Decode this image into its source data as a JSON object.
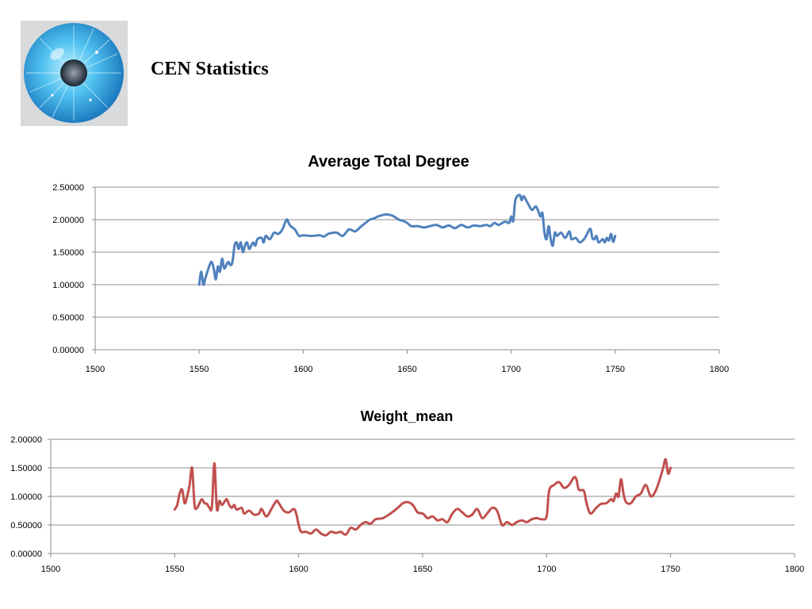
{
  "page": {
    "title": "CEN Statistics",
    "logo_icon": "eye-iris-icon"
  },
  "colors": {
    "series1": "#4f81bd",
    "series2": "#c0504d",
    "grid": "#8c8c8c"
  },
  "chart_data": [
    {
      "type": "line",
      "title": "Average Total Degree",
      "xlabel": "",
      "ylabel": "",
      "xlim": [
        1500,
        1800
      ],
      "ylim": [
        0,
        2.5
      ],
      "x_ticks": [
        1500,
        1550,
        1600,
        1650,
        1700,
        1750,
        1800
      ],
      "x_tick_labels": [
        "1500",
        "1550",
        "1600",
        "1650",
        "1700",
        "1750",
        "1800"
      ],
      "y_ticks": [
        0,
        0.5,
        1,
        1.5,
        2,
        2.5
      ],
      "y_tick_labels": [
        "0.00000",
        "0.50000",
        "1.00000",
        "1.50000",
        "2.00000",
        "2.50000"
      ],
      "grid": true,
      "legend": "none",
      "series": [
        {
          "color": "#4f81bd",
          "points": [
            [
              1550,
              1.0
            ],
            [
              1551,
              1.2
            ],
            [
              1552,
              1.0
            ],
            [
              1553,
              1.1
            ],
            [
              1555,
              1.3
            ],
            [
              1556,
              1.35
            ],
            [
              1557,
              1.25
            ],
            [
              1558,
              1.08
            ],
            [
              1559,
              1.28
            ],
            [
              1560,
              1.2
            ],
            [
              1561,
              1.4
            ],
            [
              1562,
              1.25
            ],
            [
              1563,
              1.3
            ],
            [
              1564,
              1.35
            ],
            [
              1565,
              1.3
            ],
            [
              1566,
              1.35
            ],
            [
              1567,
              1.6
            ],
            [
              1568,
              1.65
            ],
            [
              1569,
              1.55
            ],
            [
              1570,
              1.65
            ],
            [
              1571,
              1.5
            ],
            [
              1572,
              1.6
            ],
            [
              1573,
              1.65
            ],
            [
              1574,
              1.55
            ],
            [
              1575,
              1.6
            ],
            [
              1576,
              1.65
            ],
            [
              1577,
              1.6
            ],
            [
              1578,
              1.7
            ],
            [
              1580,
              1.72
            ],
            [
              1581,
              1.65
            ],
            [
              1582,
              1.75
            ],
            [
              1584,
              1.7
            ],
            [
              1586,
              1.8
            ],
            [
              1588,
              1.78
            ],
            [
              1590,
              1.85
            ],
            [
              1592,
              2.0
            ],
            [
              1593,
              1.95
            ],
            [
              1594,
              1.9
            ],
            [
              1596,
              1.85
            ],
            [
              1598,
              1.75
            ],
            [
              1600,
              1.76
            ],
            [
              1604,
              1.75
            ],
            [
              1608,
              1.76
            ],
            [
              1610,
              1.74
            ],
            [
              1612,
              1.78
            ],
            [
              1616,
              1.8
            ],
            [
              1619,
              1.75
            ],
            [
              1622,
              1.85
            ],
            [
              1625,
              1.82
            ],
            [
              1628,
              1.9
            ],
            [
              1630,
              1.95
            ],
            [
              1632,
              2.0
            ],
            [
              1634,
              2.02
            ],
            [
              1636,
              2.05
            ],
            [
              1638,
              2.07
            ],
            [
              1640,
              2.08
            ],
            [
              1643,
              2.06
            ],
            [
              1646,
              2.0
            ],
            [
              1648,
              1.98
            ],
            [
              1650,
              1.95
            ],
            [
              1652,
              1.9
            ],
            [
              1655,
              1.9
            ],
            [
              1658,
              1.88
            ],
            [
              1661,
              1.9
            ],
            [
              1664,
              1.92
            ],
            [
              1667,
              1.88
            ],
            [
              1670,
              1.91
            ],
            [
              1673,
              1.87
            ],
            [
              1676,
              1.92
            ],
            [
              1679,
              1.88
            ],
            [
              1682,
              1.91
            ],
            [
              1685,
              1.9
            ],
            [
              1688,
              1.92
            ],
            [
              1690,
              1.9
            ],
            [
              1692,
              1.95
            ],
            [
              1694,
              1.92
            ],
            [
              1697,
              1.97
            ],
            [
              1699,
              1.95
            ],
            [
              1700,
              2.05
            ],
            [
              1701,
              1.98
            ],
            [
              1702,
              2.3
            ],
            [
              1704,
              2.38
            ],
            [
              1705,
              2.3
            ],
            [
              1706,
              2.36
            ],
            [
              1708,
              2.25
            ],
            [
              1710,
              2.15
            ],
            [
              1712,
              2.2
            ],
            [
              1714,
              2.05
            ],
            [
              1715,
              2.1
            ],
            [
              1716,
              1.8
            ],
            [
              1717,
              1.7
            ],
            [
              1718,
              1.9
            ],
            [
              1719,
              1.7
            ],
            [
              1720,
              1.6
            ],
            [
              1721,
              1.8
            ],
            [
              1722,
              1.75
            ],
            [
              1724,
              1.8
            ],
            [
              1726,
              1.72
            ],
            [
              1728,
              1.82
            ],
            [
              1729,
              1.7
            ],
            [
              1731,
              1.72
            ],
            [
              1733,
              1.65
            ],
            [
              1735,
              1.7
            ],
            [
              1736,
              1.75
            ],
            [
              1738,
              1.86
            ],
            [
              1739,
              1.72
            ],
            [
              1740,
              1.7
            ],
            [
              1741,
              1.75
            ],
            [
              1742,
              1.65
            ],
            [
              1744,
              1.7
            ],
            [
              1745,
              1.65
            ],
            [
              1746,
              1.72
            ],
            [
              1747,
              1.68
            ],
            [
              1748,
              1.78
            ],
            [
              1749,
              1.66
            ],
            [
              1750,
              1.75
            ]
          ]
        }
      ]
    },
    {
      "type": "line",
      "title": "Weight_mean",
      "xlabel": "",
      "ylabel": "",
      "xlim": [
        1500,
        1800
      ],
      "ylim": [
        0,
        2
      ],
      "x_ticks": [
        1500,
        1550,
        1600,
        1650,
        1700,
        1750,
        1800
      ],
      "x_tick_labels": [
        "1500",
        "1550",
        "1600",
        "1650",
        "1700",
        "1750",
        "1800"
      ],
      "y_ticks": [
        0,
        0.5,
        1,
        1.5,
        2
      ],
      "y_tick_labels": [
        "0.00000",
        "0.50000",
        "1.00000",
        "1.50000",
        "2.00000"
      ],
      "grid": true,
      "legend": "none",
      "series": [
        {
          "color": "#c0504d",
          "points": [
            [
              1550,
              0.77
            ],
            [
              1551,
              0.85
            ],
            [
              1552,
              1.05
            ],
            [
              1553,
              1.12
            ],
            [
              1554,
              0.88
            ],
            [
              1555,
              1.0
            ],
            [
              1556,
              1.2
            ],
            [
              1557,
              1.5
            ],
            [
              1558,
              0.85
            ],
            [
              1559,
              0.8
            ],
            [
              1560,
              0.88
            ],
            [
              1561,
              0.95
            ],
            [
              1562,
              0.88
            ],
            [
              1563,
              0.87
            ],
            [
              1564,
              0.8
            ],
            [
              1565,
              0.82
            ],
            [
              1566,
              1.58
            ],
            [
              1567,
              0.78
            ],
            [
              1568,
              0.92
            ],
            [
              1569,
              0.85
            ],
            [
              1570,
              0.9
            ],
            [
              1571,
              0.95
            ],
            [
              1572,
              0.85
            ],
            [
              1573,
              0.8
            ],
            [
              1574,
              0.85
            ],
            [
              1575,
              0.77
            ],
            [
              1577,
              0.8
            ],
            [
              1578,
              0.7
            ],
            [
              1580,
              0.75
            ],
            [
              1582,
              0.68
            ],
            [
              1584,
              0.7
            ],
            [
              1585,
              0.78
            ],
            [
              1587,
              0.65
            ],
            [
              1589,
              0.78
            ],
            [
              1591,
              0.92
            ],
            [
              1592,
              0.88
            ],
            [
              1594,
              0.75
            ],
            [
              1596,
              0.72
            ],
            [
              1598,
              0.78
            ],
            [
              1599,
              0.7
            ],
            [
              1600,
              0.5
            ],
            [
              1601,
              0.38
            ],
            [
              1603,
              0.38
            ],
            [
              1605,
              0.35
            ],
            [
              1607,
              0.42
            ],
            [
              1609,
              0.35
            ],
            [
              1611,
              0.32
            ],
            [
              1613,
              0.38
            ],
            [
              1615,
              0.36
            ],
            [
              1617,
              0.38
            ],
            [
              1619,
              0.33
            ],
            [
              1621,
              0.45
            ],
            [
              1623,
              0.42
            ],
            [
              1625,
              0.5
            ],
            [
              1627,
              0.55
            ],
            [
              1629,
              0.52
            ],
            [
              1631,
              0.6
            ],
            [
              1634,
              0.62
            ],
            [
              1637,
              0.7
            ],
            [
              1640,
              0.8
            ],
            [
              1642,
              0.88
            ],
            [
              1644,
              0.9
            ],
            [
              1646,
              0.85
            ],
            [
              1648,
              0.72
            ],
            [
              1650,
              0.7
            ],
            [
              1652,
              0.62
            ],
            [
              1654,
              0.65
            ],
            [
              1656,
              0.58
            ],
            [
              1658,
              0.6
            ],
            [
              1660,
              0.55
            ],
            [
              1662,
              0.7
            ],
            [
              1664,
              0.78
            ],
            [
              1666,
              0.72
            ],
            [
              1668,
              0.65
            ],
            [
              1670,
              0.68
            ],
            [
              1672,
              0.78
            ],
            [
              1674,
              0.62
            ],
            [
              1676,
              0.7
            ],
            [
              1678,
              0.8
            ],
            [
              1680,
              0.75
            ],
            [
              1682,
              0.5
            ],
            [
              1684,
              0.55
            ],
            [
              1686,
              0.5
            ],
            [
              1688,
              0.55
            ],
            [
              1690,
              0.58
            ],
            [
              1692,
              0.55
            ],
            [
              1694,
              0.6
            ],
            [
              1696,
              0.62
            ],
            [
              1698,
              0.6
            ],
            [
              1700,
              0.65
            ],
            [
              1701,
              1.1
            ],
            [
              1703,
              1.2
            ],
            [
              1705,
              1.25
            ],
            [
              1707,
              1.15
            ],
            [
              1709,
              1.2
            ],
            [
              1711,
              1.33
            ],
            [
              1712,
              1.3
            ],
            [
              1713,
              1.12
            ],
            [
              1715,
              1.1
            ],
            [
              1716,
              0.9
            ],
            [
              1717,
              0.75
            ],
            [
              1718,
              0.7
            ],
            [
              1720,
              0.8
            ],
            [
              1722,
              0.87
            ],
            [
              1724,
              0.88
            ],
            [
              1726,
              0.95
            ],
            [
              1727,
              0.92
            ],
            [
              1728,
              1.05
            ],
            [
              1729,
              1.0
            ],
            [
              1730,
              1.3
            ],
            [
              1731,
              1.05
            ],
            [
              1732,
              0.9
            ],
            [
              1734,
              0.88
            ],
            [
              1736,
              1.0
            ],
            [
              1738,
              1.05
            ],
            [
              1740,
              1.2
            ],
            [
              1742,
              1.0
            ],
            [
              1744,
              1.1
            ],
            [
              1746,
              1.35
            ],
            [
              1747,
              1.5
            ],
            [
              1748,
              1.65
            ],
            [
              1749,
              1.4
            ],
            [
              1750,
              1.5
            ]
          ]
        }
      ]
    }
  ]
}
